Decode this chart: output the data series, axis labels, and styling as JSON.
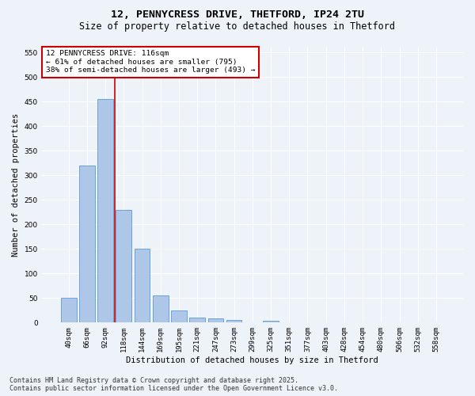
{
  "title": "12, PENNYCRESS DRIVE, THETFORD, IP24 2TU",
  "subtitle": "Size of property relative to detached houses in Thetford",
  "xlabel": "Distribution of detached houses by size in Thetford",
  "ylabel": "Number of detached properties",
  "categories": [
    "40sqm",
    "66sqm",
    "92sqm",
    "118sqm",
    "144sqm",
    "169sqm",
    "195sqm",
    "221sqm",
    "247sqm",
    "273sqm",
    "299sqm",
    "325sqm",
    "351sqm",
    "377sqm",
    "403sqm",
    "428sqm",
    "454sqm",
    "480sqm",
    "506sqm",
    "532sqm",
    "558sqm"
  ],
  "values": [
    50,
    320,
    455,
    230,
    150,
    55,
    25,
    10,
    8,
    6,
    0,
    4,
    1,
    0,
    0,
    1,
    0,
    0,
    0,
    0,
    0
  ],
  "bar_color": "#aec6e8",
  "bar_edgecolor": "#5b9bd5",
  "vline_x": 2.5,
  "vline_color": "#cc0000",
  "annotation_text": "12 PENNYCRESS DRIVE: 116sqm\n← 61% of detached houses are smaller (795)\n38% of semi-detached houses are larger (493) →",
  "annotation_box_color": "#ffffff",
  "annotation_box_edgecolor": "#cc0000",
  "ylim": [
    0,
    560
  ],
  "yticks": [
    0,
    50,
    100,
    150,
    200,
    250,
    300,
    350,
    400,
    450,
    500,
    550
  ],
  "footer1": "Contains HM Land Registry data © Crown copyright and database right 2025.",
  "footer2": "Contains public sector information licensed under the Open Government Licence v3.0.",
  "bg_color": "#eef2f9",
  "plot_bg_color": "#eef2f9",
  "title_fontsize": 9.5,
  "subtitle_fontsize": 8.5,
  "axis_label_fontsize": 7.5,
  "tick_fontsize": 6.5,
  "annotation_fontsize": 6.8,
  "footer_fontsize": 6.0
}
